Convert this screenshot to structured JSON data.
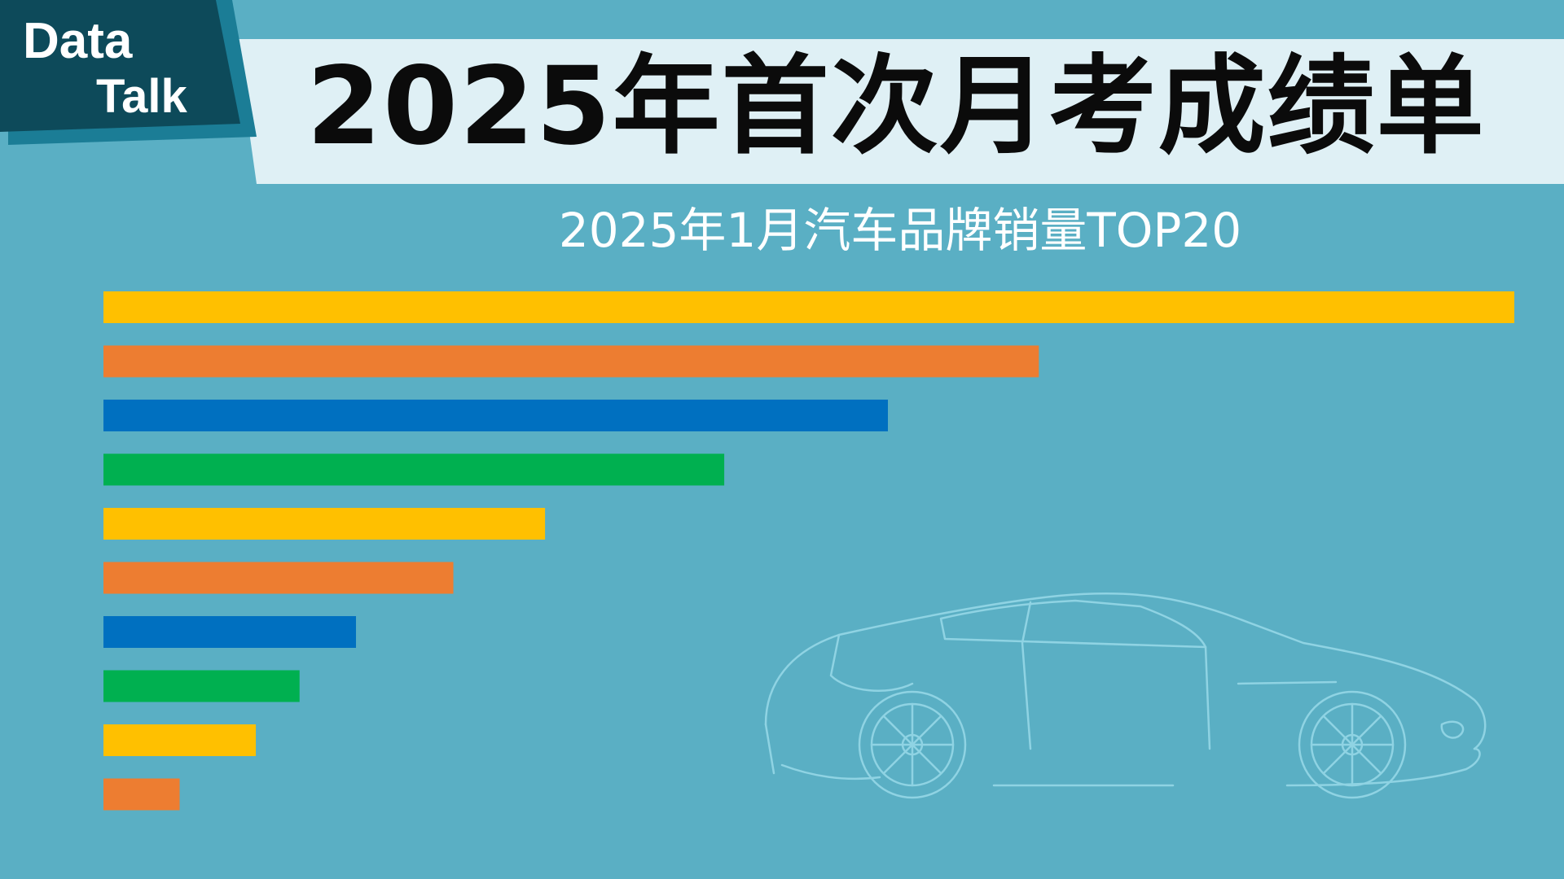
{
  "brand": {
    "line1": "Data",
    "line2": "Talk"
  },
  "title": "2025年首次月考成绩单",
  "subtitle": "2025年1月汽车品牌销量TOP20",
  "colors": {
    "background": "#5aafc4",
    "title_band": "#dff0f5",
    "logo_dark": "#0d4a5a",
    "logo_mid": "#1b7d96",
    "palette": [
      "#ffc000",
      "#ed7d31",
      "#0070c0",
      "#00b050"
    ]
  },
  "chart_data": {
    "type": "bar",
    "orientation": "horizontal",
    "values": [
      100,
      66.3,
      55.6,
      44,
      31.3,
      24.8,
      17.9,
      13.9,
      10.8,
      5.4
    ],
    "xlim": [
      0,
      100
    ],
    "grid": false,
    "legend": "none"
  }
}
